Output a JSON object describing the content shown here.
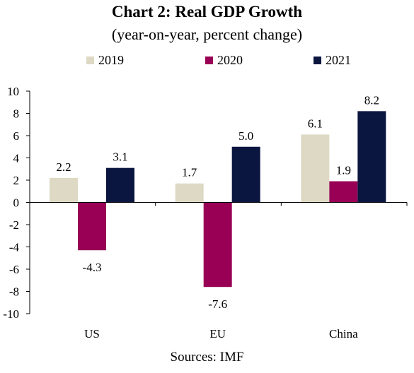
{
  "chart_data": {
    "type": "bar",
    "title": "Chart 2: Real GDP Growth",
    "subtitle": "(year-on-year, percent change)",
    "source": "Sources: IMF",
    "categories": [
      "US",
      "EU",
      "China"
    ],
    "series": [
      {
        "name": "2019",
        "color": "#ddd9c4",
        "values": [
          2.2,
          1.7,
          6.1
        ],
        "labels": [
          "2.2",
          "1.7",
          "6.1"
        ]
      },
      {
        "name": "2020",
        "color": "#990055",
        "values": [
          -4.3,
          -7.6,
          1.9
        ],
        "labels": [
          "-4.3",
          "-7.6",
          "1.9"
        ]
      },
      {
        "name": "2021",
        "color": "#0b1640",
        "values": [
          3.1,
          5.0,
          8.2
        ],
        "labels": [
          "3.1",
          "5.0",
          "8.2"
        ]
      }
    ],
    "ylim": [
      -10,
      10
    ],
    "yticks": [
      10,
      8,
      6,
      4,
      2,
      0,
      -2,
      -4,
      -6,
      -8,
      -10
    ],
    "xlabel": "",
    "ylabel": "",
    "grid": false,
    "legend_position": "top"
  }
}
